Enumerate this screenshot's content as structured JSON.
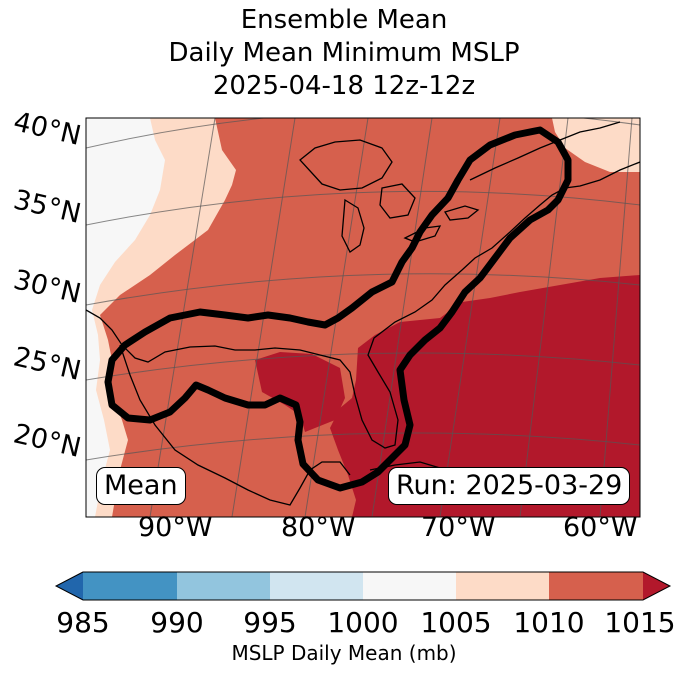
{
  "title": {
    "line1": "Ensemble Mean",
    "line2": "Daily Mean Minimum MSLP",
    "line3": "2025-04-18 12z-12z"
  },
  "map": {
    "lat_labels": [
      "40°N",
      "35°N",
      "30°N",
      "25°N",
      "20°N"
    ],
    "lon_labels": [
      "90°W",
      "80°W",
      "70°W",
      "60°W"
    ],
    "panel_left": "Mean",
    "panel_right": "Run: 2025-03-29"
  },
  "colorbar": {
    "ticks": [
      "985",
      "990",
      "995",
      "1000",
      "1005",
      "1010",
      "1015"
    ],
    "label": "MSLP Daily Mean (mb)",
    "colors": [
      "#2166ac",
      "#4393c3",
      "#92c5de",
      "#d1e5f0",
      "#f7f7f7",
      "#fddbc7",
      "#d6604d",
      "#b2182b"
    ]
  }
}
